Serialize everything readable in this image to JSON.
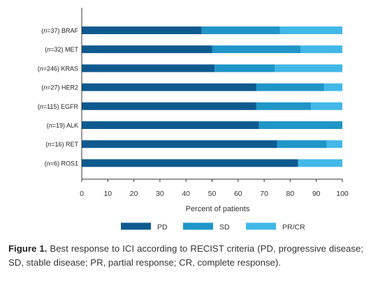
{
  "chart_data": {
    "type": "bar",
    "orientation": "horizontal",
    "stacked": true,
    "categories": [
      {
        "n": "37",
        "gene": "BRAF"
      },
      {
        "n": "32",
        "gene": "MET"
      },
      {
        "n": "246",
        "gene": "KRAS"
      },
      {
        "n": "27",
        "gene": "HER2"
      },
      {
        "n": "115",
        "gene": "EGFR"
      },
      {
        "n": "19",
        "gene": "ALK"
      },
      {
        "n": "16",
        "gene": "RET"
      },
      {
        "n": "6",
        "gene": "ROS1"
      }
    ],
    "series": [
      {
        "name": "PD",
        "color": "#0e5a8f",
        "values": [
          46,
          50,
          51,
          67,
          67,
          68,
          75,
          83
        ]
      },
      {
        "name": "SD",
        "color": "#1f95c8",
        "values": [
          30,
          34,
          23,
          26,
          21,
          32,
          19,
          0
        ]
      },
      {
        "name": "PR/CR",
        "color": "#42b8e8",
        "values": [
          24,
          16,
          26,
          7,
          12,
          0,
          6,
          17
        ]
      }
    ],
    "xlabel": "Percent of patients",
    "xlim": [
      0,
      100
    ],
    "xticks": [
      0,
      10,
      20,
      30,
      40,
      50,
      60,
      70,
      80,
      90,
      100
    ],
    "grid": false,
    "legend_position": "bottom"
  },
  "caption": {
    "label": "Figure 1.",
    "text": " Best response to ICI according to RECIST criteria (PD, progressive disease; SD, stable disease; PR, partial response; CR, complete response)."
  }
}
